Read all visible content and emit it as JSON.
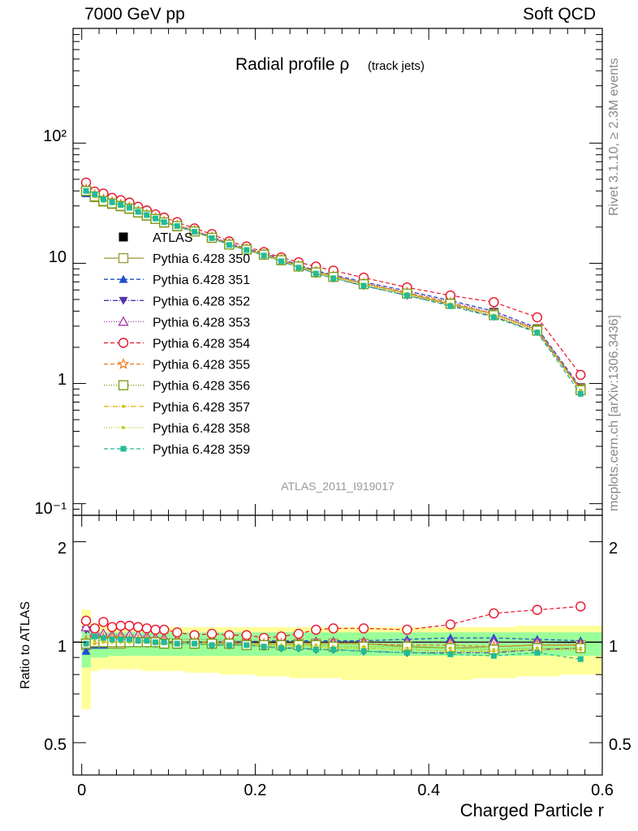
{
  "header": {
    "left": "7000 GeV pp",
    "right": "Soft QCD"
  },
  "side_labels": {
    "upper": "Rivet 3.1.10, ≥ 2.3M events",
    "lower": "mcplots.cern.ch [arXiv:1306.3436]"
  },
  "chart_data": [
    {
      "type": "line",
      "title_main": "Radial profile ρ",
      "title_sub": "(track jets)",
      "analysis_label": "ATLAS_2011_I919017",
      "x": [
        0.005,
        0.015,
        0.025,
        0.035,
        0.045,
        0.055,
        0.065,
        0.075,
        0.085,
        0.095,
        0.11,
        0.13,
        0.15,
        0.17,
        0.19,
        0.21,
        0.23,
        0.25,
        0.27,
        0.29,
        0.325,
        0.375,
        0.425,
        0.475,
        0.525,
        0.575
      ],
      "xlim": [
        -0.01,
        0.6
      ],
      "ylim": [
        0.08,
        900
      ],
      "yscale": "log",
      "y_ticks": [
        "10⁻¹",
        "1",
        "10",
        "10²"
      ],
      "x_ticks": [
        "0",
        "0.2",
        "0.4",
        "0.6"
      ],
      "legend_position": "left-middle",
      "series": [
        {
          "name": "ATLAS",
          "color": "#000000",
          "marker": "square-filled",
          "dash": "none",
          "y": [
            40.5,
            36,
            33,
            31.5,
            30,
            28.5,
            26.5,
            25,
            23.5,
            22,
            20.5,
            18.5,
            16.5,
            14.5,
            13.2,
            12.0,
            10.8,
            9.6,
            8.6,
            7.9,
            6.9,
            5.8,
            4.8,
            3.9,
            2.85,
            0.92
          ]
        },
        {
          "name": "Pythia 6.428 350",
          "color": "#999933",
          "marker": "square-open",
          "dash": "none",
          "y": [
            39.7,
            35.5,
            32.6,
            31.2,
            29.8,
            28.4,
            26.4,
            24.9,
            23.4,
            21.8,
            20.3,
            18.4,
            16.3,
            14.4,
            13.1,
            11.9,
            10.7,
            9.5,
            8.5,
            7.8,
            6.8,
            5.6,
            4.6,
            3.8,
            2.8,
            0.9
          ]
        },
        {
          "name": "Pythia 6.428 351",
          "color": "#1f4fcc",
          "marker": "triangle-up-filled",
          "dash": "5,3",
          "y": [
            38,
            35.2,
            32.5,
            31.4,
            30.2,
            28.8,
            26.8,
            25.2,
            23.6,
            22.1,
            20.6,
            18.6,
            16.6,
            14.6,
            13.3,
            12.1,
            10.9,
            9.7,
            8.7,
            8.0,
            7.0,
            5.9,
            4.9,
            4.0,
            2.9,
            0.93
          ]
        },
        {
          "name": "Pythia 6.428 352",
          "color": "#5533aa",
          "marker": "triangle-down-filled",
          "dash": "6,2,1,2",
          "y": [
            44,
            37,
            33.5,
            31.8,
            30.3,
            28.6,
            26.4,
            24.8,
            23.2,
            21.7,
            20.2,
            18.3,
            16.2,
            14.2,
            12.9,
            11.6,
            10.4,
            9.2,
            8.2,
            7.5,
            6.5,
            5.4,
            4.5,
            3.6,
            2.7,
            0.88
          ]
        },
        {
          "name": "Pythia 6.428 353",
          "color": "#aa33aa",
          "marker": "triangle-up-open",
          "dash": "1,2",
          "y": [
            45,
            38.5,
            35,
            33,
            31.5,
            30,
            27.8,
            26,
            24.3,
            22.6,
            21,
            18.8,
            16.8,
            14.7,
            13.3,
            12.1,
            10.9,
            9.6,
            8.6,
            7.9,
            6.9,
            5.8,
            4.8,
            3.9,
            2.85,
            0.91
          ]
        },
        {
          "name": "Pythia 6.428 354",
          "color": "#e8132a",
          "marker": "circle-open",
          "dash": "5,3",
          "y": [
            47,
            39.5,
            38,
            35,
            33.5,
            32,
            29.5,
            27.5,
            25.5,
            24,
            22,
            19.5,
            17.5,
            15.2,
            13.8,
            12.4,
            11.2,
            10.2,
            9.4,
            8.7,
            7.6,
            6.3,
            5.4,
            4.75,
            3.55,
            1.18
          ]
        },
        {
          "name": "Pythia 6.428 355",
          "color": "#f07a1a",
          "marker": "star-open",
          "dash": "5,3",
          "y": [
            41,
            37,
            34,
            32.3,
            30.8,
            29.2,
            27,
            25.4,
            23.8,
            22.2,
            20.6,
            18.6,
            16.5,
            14.5,
            13.1,
            11.9,
            10.7,
            9.5,
            8.5,
            7.8,
            6.8,
            5.7,
            4.7,
            3.8,
            2.8,
            0.9
          ]
        },
        {
          "name": "Pythia 6.428 356",
          "color": "#779911",
          "marker": "square-open",
          "dash": "1,2",
          "y": [
            40,
            36,
            33,
            31.5,
            30,
            28.5,
            26.5,
            25,
            23.4,
            21.9,
            20.4,
            18.4,
            16.3,
            14.3,
            13.0,
            11.8,
            10.6,
            9.4,
            8.4,
            7.7,
            6.7,
            5.6,
            4.6,
            3.7,
            2.75,
            0.88
          ]
        },
        {
          "name": "Pythia 6.428 357",
          "color": "#ddbb22",
          "marker": "dot",
          "dash": "6,2,1,2",
          "y": [
            39.5,
            35.8,
            32.9,
            31.4,
            29.9,
            28.4,
            26.4,
            24.9,
            23.3,
            21.8,
            20.3,
            18.3,
            16.2,
            14.2,
            12.9,
            11.7,
            10.5,
            9.3,
            8.3,
            7.6,
            6.6,
            5.5,
            4.5,
            3.65,
            2.7,
            0.87
          ]
        },
        {
          "name": "Pythia 6.428 358",
          "color": "#bbcc22",
          "marker": "dot",
          "dash": "1,2",
          "y": [
            40,
            36.2,
            33.2,
            31.6,
            30.1,
            28.6,
            26.6,
            25.1,
            23.5,
            21.9,
            20.4,
            18.4,
            16.3,
            14.3,
            13.0,
            11.8,
            10.6,
            9.4,
            8.4,
            7.7,
            6.7,
            5.6,
            4.6,
            3.7,
            2.75,
            0.88
          ]
        },
        {
          "name": "Pythia 6.428 359",
          "color": "#22bb99",
          "marker": "square-filled-small",
          "dash": "5,3",
          "y": [
            40,
            37.5,
            34,
            32.2,
            30.6,
            29,
            26.8,
            25.2,
            23.6,
            22.0,
            20.4,
            18.3,
            16.2,
            14.2,
            12.9,
            11.6,
            10.4,
            9.2,
            8.2,
            7.5,
            6.5,
            5.4,
            4.4,
            3.55,
            2.65,
            0.82
          ]
        }
      ]
    },
    {
      "type": "line",
      "ylabel": "Ratio to ATLAS",
      "xlabel": "Charged Particle r",
      "ylim": [
        0.4,
        2.4
      ],
      "yscale": "log",
      "y_ticks": [
        "0.5",
        "1",
        "2"
      ],
      "x_ticks": [
        "0",
        "0.2",
        "0.4",
        "0.6"
      ],
      "stat_band": {
        "color": "#99ff99",
        "lower": [
          0.84,
          0.9,
          0.9,
          0.91,
          0.91,
          0.91,
          0.91,
          0.91,
          0.91,
          0.91,
          0.91,
          0.91,
          0.91,
          0.91,
          0.91,
          0.91,
          0.91,
          0.91,
          0.91,
          0.91,
          0.91,
          0.91,
          0.91,
          0.91,
          0.91,
          0.91
        ],
        "upper": [
          1.08,
          1.07,
          1.07,
          1.07,
          1.07,
          1.07,
          1.07,
          1.07,
          1.07,
          1.07,
          1.07,
          1.07,
          1.07,
          1.07,
          1.07,
          1.07,
          1.07,
          1.07,
          1.07,
          1.07,
          1.07,
          1.07,
          1.07,
          1.07,
          1.07,
          1.07
        ]
      },
      "syst_band": {
        "color": "#ffff99",
        "lower": [
          0.63,
          0.82,
          0.83,
          0.83,
          0.83,
          0.83,
          0.83,
          0.82,
          0.82,
          0.82,
          0.82,
          0.81,
          0.81,
          0.8,
          0.8,
          0.79,
          0.79,
          0.78,
          0.78,
          0.78,
          0.77,
          0.77,
          0.77,
          0.78,
          0.79,
          0.8
        ],
        "upper": [
          1.25,
          1.14,
          1.13,
          1.12,
          1.12,
          1.12,
          1.11,
          1.11,
          1.11,
          1.11,
          1.11,
          1.11,
          1.11,
          1.11,
          1.11,
          1.11,
          1.11,
          1.11,
          1.11,
          1.11,
          1.11,
          1.11,
          1.11,
          1.11,
          1.12,
          1.12
        ]
      },
      "ratios": [
        [
          0.98,
          0.99,
          0.99,
          0.99,
          0.99,
          1.0,
          1.0,
          1.0,
          1.0,
          0.99,
          0.99,
          0.99,
          0.99,
          0.99,
          0.99,
          0.99,
          0.99,
          0.99,
          0.99,
          0.99,
          0.99,
          0.97,
          0.96,
          0.97,
          0.98,
          0.98
        ],
        [
          0.94,
          0.98,
          0.98,
          1.0,
          1.0,
          1.01,
          1.01,
          1.01,
          1.0,
          1.0,
          1.0,
          1.0,
          1.0,
          1.0,
          1.0,
          1.01,
          1.01,
          1.01,
          1.01,
          1.01,
          1.01,
          1.02,
          1.03,
          1.03,
          1.02,
          1.01
        ],
        [
          1.09,
          1.03,
          1.02,
          1.01,
          1.01,
          1.0,
          1.0,
          0.99,
          0.99,
          0.99,
          0.99,
          0.99,
          0.98,
          0.98,
          0.98,
          0.97,
          0.96,
          0.96,
          0.95,
          0.95,
          0.94,
          0.93,
          0.93,
          0.93,
          0.95,
          0.96
        ],
        [
          1.11,
          1.07,
          1.06,
          1.05,
          1.05,
          1.05,
          1.05,
          1.04,
          1.03,
          1.03,
          1.02,
          1.02,
          1.02,
          1.01,
          1.01,
          1.01,
          1.01,
          1.0,
          1.0,
          1.0,
          1.0,
          1.0,
          1.0,
          1.0,
          1.0,
          0.99
        ],
        [
          1.16,
          1.1,
          1.15,
          1.11,
          1.12,
          1.12,
          1.11,
          1.1,
          1.09,
          1.09,
          1.07,
          1.05,
          1.06,
          1.05,
          1.05,
          1.03,
          1.04,
          1.06,
          1.09,
          1.1,
          1.1,
          1.09,
          1.13,
          1.22,
          1.25,
          1.28
        ],
        [
          1.01,
          1.03,
          1.03,
          1.03,
          1.03,
          1.02,
          1.02,
          1.02,
          1.01,
          1.01,
          1.0,
          1.0,
          1.0,
          1.0,
          0.99,
          0.99,
          0.99,
          0.99,
          0.99,
          0.99,
          0.99,
          0.98,
          0.98,
          0.97,
          0.98,
          0.98
        ],
        [
          0.99,
          1.0,
          1.0,
          1.0,
          1.0,
          1.0,
          1.0,
          1.0,
          1.0,
          0.99,
          0.99,
          0.99,
          0.99,
          0.99,
          0.98,
          0.98,
          0.98,
          0.98,
          0.98,
          0.97,
          0.97,
          0.97,
          0.96,
          0.95,
          0.96,
          0.96
        ],
        [
          0.98,
          0.99,
          1.0,
          1.0,
          1.0,
          1.0,
          1.0,
          1.0,
          0.99,
          0.99,
          0.99,
          0.99,
          0.98,
          0.98,
          0.98,
          0.97,
          0.97,
          0.97,
          0.97,
          0.96,
          0.96,
          0.95,
          0.94,
          0.94,
          0.95,
          0.95
        ],
        [
          0.99,
          1.01,
          1.01,
          1.0,
          1.0,
          1.0,
          1.0,
          1.0,
          1.0,
          0.99,
          0.99,
          0.99,
          0.99,
          0.98,
          0.98,
          0.98,
          0.98,
          0.98,
          0.98,
          0.97,
          0.97,
          0.96,
          0.96,
          0.95,
          0.96,
          0.96
        ],
        [
          0.99,
          1.04,
          1.03,
          1.02,
          1.02,
          1.02,
          1.01,
          1.01,
          1.0,
          1.0,
          0.99,
          0.99,
          0.98,
          0.98,
          0.98,
          0.97,
          0.96,
          0.96,
          0.95,
          0.95,
          0.94,
          0.93,
          0.92,
          0.91,
          0.93,
          0.89
        ]
      ]
    }
  ]
}
